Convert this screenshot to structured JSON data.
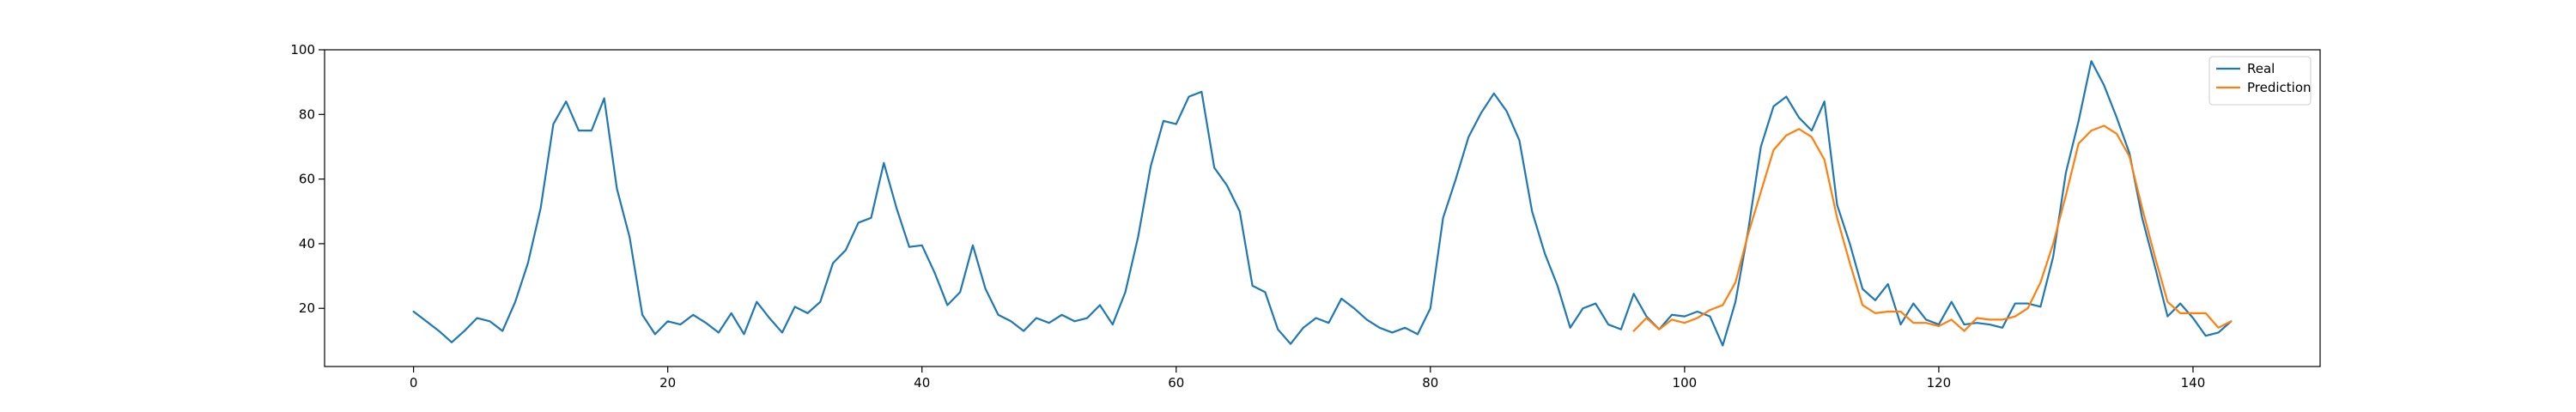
{
  "chart_data": {
    "type": "line",
    "title": "",
    "xlabel": "",
    "ylabel": "",
    "xlim": [
      -7,
      150
    ],
    "ylim": [
      2,
      100
    ],
    "x_ticks": [
      0,
      20,
      40,
      60,
      80,
      100,
      120,
      140
    ],
    "y_ticks": [
      20,
      40,
      60,
      80,
      100
    ],
    "grid": false,
    "legend_position": "top-right",
    "series": [
      {
        "name": "Real",
        "color": "#1f77b4",
        "x_start": 0,
        "values": [
          19,
          16,
          13,
          9.5,
          13,
          17,
          16,
          13,
          22,
          34,
          51,
          77,
          84,
          75,
          75,
          85,
          57,
          42,
          18,
          12,
          16,
          15,
          18,
          15.5,
          12.5,
          18.5,
          12,
          22,
          17,
          12.5,
          20.5,
          18.5,
          22,
          34,
          38,
          46.5,
          48,
          65,
          51,
          39,
          39.5,
          31,
          21,
          25,
          39.5,
          26,
          18,
          16,
          13,
          17,
          15.5,
          18,
          16,
          17,
          21,
          15,
          25,
          42,
          64,
          78,
          77,
          85.5,
          87,
          63.5,
          58,
          50,
          27,
          25,
          13.5,
          9,
          14,
          17,
          15.5,
          23,
          20,
          16.5,
          14,
          12.5,
          14,
          12,
          20,
          48,
          60,
          73,
          80.5,
          86.5,
          81,
          72,
          50,
          37,
          27,
          14,
          20,
          21.5,
          15,
          13.5,
          24.5,
          17.5,
          13.5,
          18,
          17.5,
          19,
          17.5,
          8.5,
          22,
          44,
          70,
          82.5,
          85.5,
          79,
          75,
          84,
          52,
          40,
          26,
          22.5,
          27.5,
          15,
          21.5,
          16.5,
          15,
          22,
          15,
          15.5,
          15,
          14,
          21.5,
          21.5,
          20.5,
          36,
          62,
          78,
          96.5,
          89,
          79,
          68,
          48,
          33,
          17.5,
          21.5,
          17,
          11.5,
          12.5,
          16
        ]
      },
      {
        "name": "Prediction",
        "color": "#ff7f0e",
        "x_start": 96,
        "values": [
          13,
          17,
          13.5,
          16.5,
          15.5,
          17,
          19.5,
          21,
          28,
          43,
          56,
          69,
          73.5,
          75.5,
          73,
          66,
          48,
          34,
          21,
          18.5,
          19,
          19,
          15.5,
          15.5,
          14.5,
          16.5,
          13,
          17,
          16.5,
          16.5,
          17.5,
          20,
          28,
          40,
          55,
          71,
          75,
          76.5,
          74,
          67,
          51,
          36,
          22,
          18.5,
          18.5,
          18.5,
          14,
          16
        ]
      }
    ]
  }
}
